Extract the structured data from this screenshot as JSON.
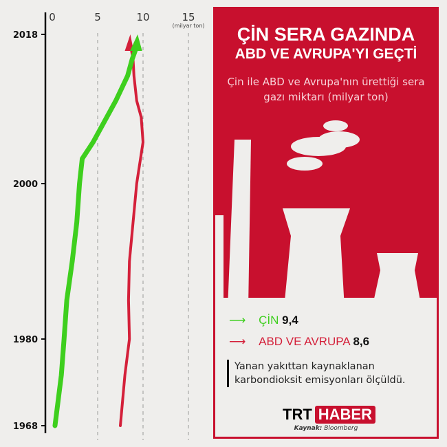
{
  "panel": {
    "title_line1": "ÇİN SERA GAZINDA",
    "title_line2": "ABD VE AVRUPA'YI GEÇTİ",
    "subtitle": "Çin ile ABD ve Avrupa'nın ürettiği sera gazı miktarı (milyar ton)",
    "note": "Yanan yakıttan kaynaklanan karbondioksit emisyonları ölçüldü.",
    "logo_part1": "TRT",
    "logo_part2": "HABER",
    "source_label": "Kaynak:",
    "source_value": "Bloomberg",
    "brand_color": "#c8102e"
  },
  "chart_data": {
    "type": "line",
    "orientation": "vertical-time-axis",
    "xlabel": "(milyar ton)",
    "x_ticks": [
      "0",
      "5",
      "10",
      "15"
    ],
    "xlim": [
      0,
      15
    ],
    "y_ticks": [
      "2018",
      "2000",
      "1980",
      "1968"
    ],
    "ylim": [
      1968,
      2018
    ],
    "grid": "dashed vertical at 5, 10, 15",
    "series": [
      {
        "name": "ÇİN",
        "final_value": "9,4",
        "color": "#3ecf1e",
        "years": [
          1968,
          1975,
          1980,
          1985,
          1990,
          1995,
          2000,
          2003,
          2005,
          2008,
          2010,
          2013,
          2015,
          2018
        ],
        "values": [
          0.3,
          1.0,
          1.3,
          1.6,
          2.2,
          2.7,
          3.0,
          3.3,
          4.5,
          6.0,
          7.0,
          8.3,
          8.8,
          9.4
        ]
      },
      {
        "name": "ABD VE AVRUPA",
        "final_value": "8,6",
        "color": "#d4203a",
        "years": [
          1968,
          1975,
          1980,
          1985,
          1990,
          1995,
          2000,
          2005,
          2008,
          2010,
          2013,
          2015,
          2018
        ],
        "values": [
          7.5,
          8.0,
          8.5,
          8.4,
          8.5,
          8.9,
          9.3,
          10.0,
          9.8,
          9.3,
          9.0,
          8.9,
          8.6
        ]
      }
    ]
  }
}
